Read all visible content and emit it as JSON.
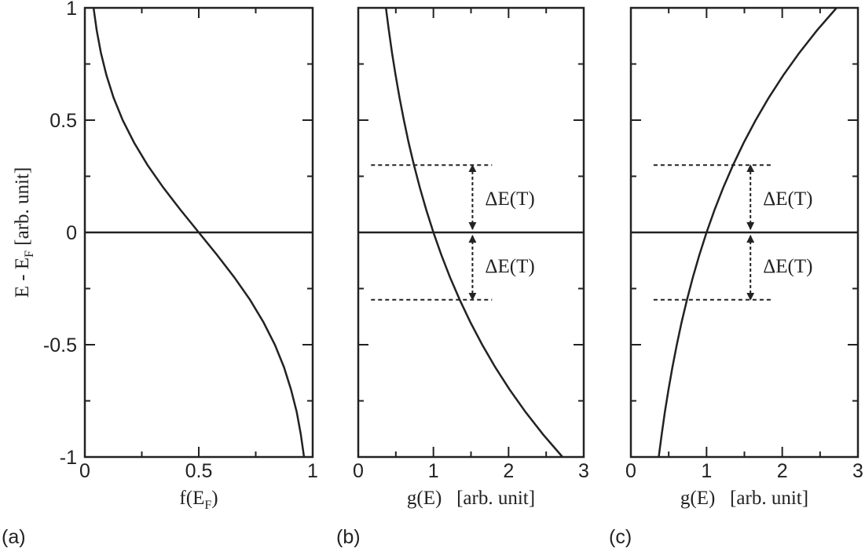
{
  "chart_data": [
    {
      "type": "line",
      "panel_label": "(a)",
      "xlabel": [
        "f(E",
        "F",
        ")"
      ],
      "ylabel": [
        "E - E",
        "F",
        " [arb. unit]"
      ],
      "xlim": [
        0,
        1
      ],
      "ylim": [
        -1,
        1
      ],
      "xticks": [
        0,
        0.5,
        1
      ],
      "yticks": [
        -1,
        -0.5,
        0,
        0.5,
        1
      ],
      "xminorticks": [
        0.25,
        0.75
      ],
      "yminorticks": [
        -0.75,
        -0.25,
        0.25,
        0.75
      ],
      "ytick_labels": true,
      "reference_line": 0,
      "series": [
        {
          "color": "#222",
          "x": [
            0.0382,
            0.052,
            0.0704,
            0.0947,
            0.126,
            0.166,
            0.216,
            0.275,
            0.344,
            0.42,
            0.5,
            0.58,
            0.656,
            0.725,
            0.784,
            0.834,
            0.874,
            0.905,
            0.93,
            0.948,
            0.962
          ],
          "values": [
            1,
            0.9,
            0.8,
            0.7,
            0.6,
            0.5,
            0.4,
            0.3,
            0.2,
            0.1,
            0,
            -0.1,
            -0.2,
            -0.3,
            -0.4,
            -0.5,
            -0.6,
            -0.7,
            -0.8,
            -0.9,
            -1
          ]
        }
      ],
      "dashed_lines": [],
      "arrows": []
    },
    {
      "type": "line",
      "panel_label": "(b)",
      "xlabel": [
        "g(E)   [arb. unit]"
      ],
      "xlim": [
        0,
        3
      ],
      "ylim": [
        -1,
        1
      ],
      "xticks": [
        0,
        1,
        2,
        3
      ],
      "yticks": [
        -1,
        -0.5,
        0,
        0.5,
        1
      ],
      "xminorticks": [
        0.5,
        1.5,
        2.5
      ],
      "yminorticks": [
        -0.75,
        -0.25,
        0.25,
        0.75
      ],
      "ytick_labels": false,
      "reference_line": 0,
      "series": [
        {
          "color": "#222",
          "x": [
            0.368,
            0.407,
            0.449,
            0.497,
            0.549,
            0.607,
            0.67,
            0.741,
            0.819,
            0.905,
            1,
            1.105,
            1.221,
            1.35,
            1.492,
            1.649,
            1.822,
            2.014,
            2.226,
            2.46,
            2.718
          ],
          "values": [
            1,
            0.9,
            0.8,
            0.7,
            0.6,
            0.5,
            0.4,
            0.3,
            0.2,
            0.1,
            0,
            -0.1,
            -0.2,
            -0.3,
            -0.4,
            -0.5,
            -0.6,
            -0.7,
            -0.8,
            -0.9,
            -1
          ]
        }
      ],
      "dashed_lines": [
        {
          "y": 0.3,
          "x": [
            0.17,
            1.78
          ]
        },
        {
          "y": -0.3,
          "x": [
            0.17,
            1.78
          ]
        }
      ],
      "arrows": [
        {
          "x": 1.52,
          "y": [
            0,
            0.3
          ],
          "label": "ΔE(T)"
        },
        {
          "x": 1.52,
          "y": [
            0,
            -0.3
          ],
          "label": "ΔE(T)"
        }
      ]
    },
    {
      "type": "line",
      "panel_label": "(c)",
      "xlabel": [
        "g(E)   [arb. unit]"
      ],
      "xlim": [
        0,
        3
      ],
      "ylim": [
        -1,
        1
      ],
      "xticks": [
        0,
        1,
        2,
        3
      ],
      "yticks": [
        -1,
        -0.5,
        0,
        0.5,
        1
      ],
      "xminorticks": [
        0.5,
        1.5,
        2.5
      ],
      "yminorticks": [
        -0.75,
        -0.25,
        0.25,
        0.75
      ],
      "ytick_labels": false,
      "reference_line": 0,
      "series": [
        {
          "color": "#222",
          "x": [
            2.718,
            2.46,
            2.226,
            2.014,
            1.822,
            1.649,
            1.492,
            1.35,
            1.221,
            1.105,
            1,
            0.905,
            0.819,
            0.741,
            0.67,
            0.607,
            0.549,
            0.497,
            0.449,
            0.407,
            0.368
          ],
          "values": [
            1,
            0.9,
            0.8,
            0.7,
            0.6,
            0.5,
            0.4,
            0.3,
            0.2,
            0.1,
            0,
            -0.1,
            -0.2,
            -0.3,
            -0.4,
            -0.5,
            -0.6,
            -0.7,
            -0.8,
            -0.9,
            -1
          ]
        }
      ],
      "dashed_lines": [
        {
          "y": 0.3,
          "x": [
            0.3,
            1.86
          ]
        },
        {
          "y": -0.3,
          "x": [
            0.3,
            1.86
          ]
        }
      ],
      "arrows": [
        {
          "x": 1.58,
          "y": [
            0,
            0.3
          ],
          "label": "ΔE(T)"
        },
        {
          "x": 1.58,
          "y": [
            0,
            -0.3
          ],
          "label": "ΔE(T)"
        }
      ]
    }
  ]
}
